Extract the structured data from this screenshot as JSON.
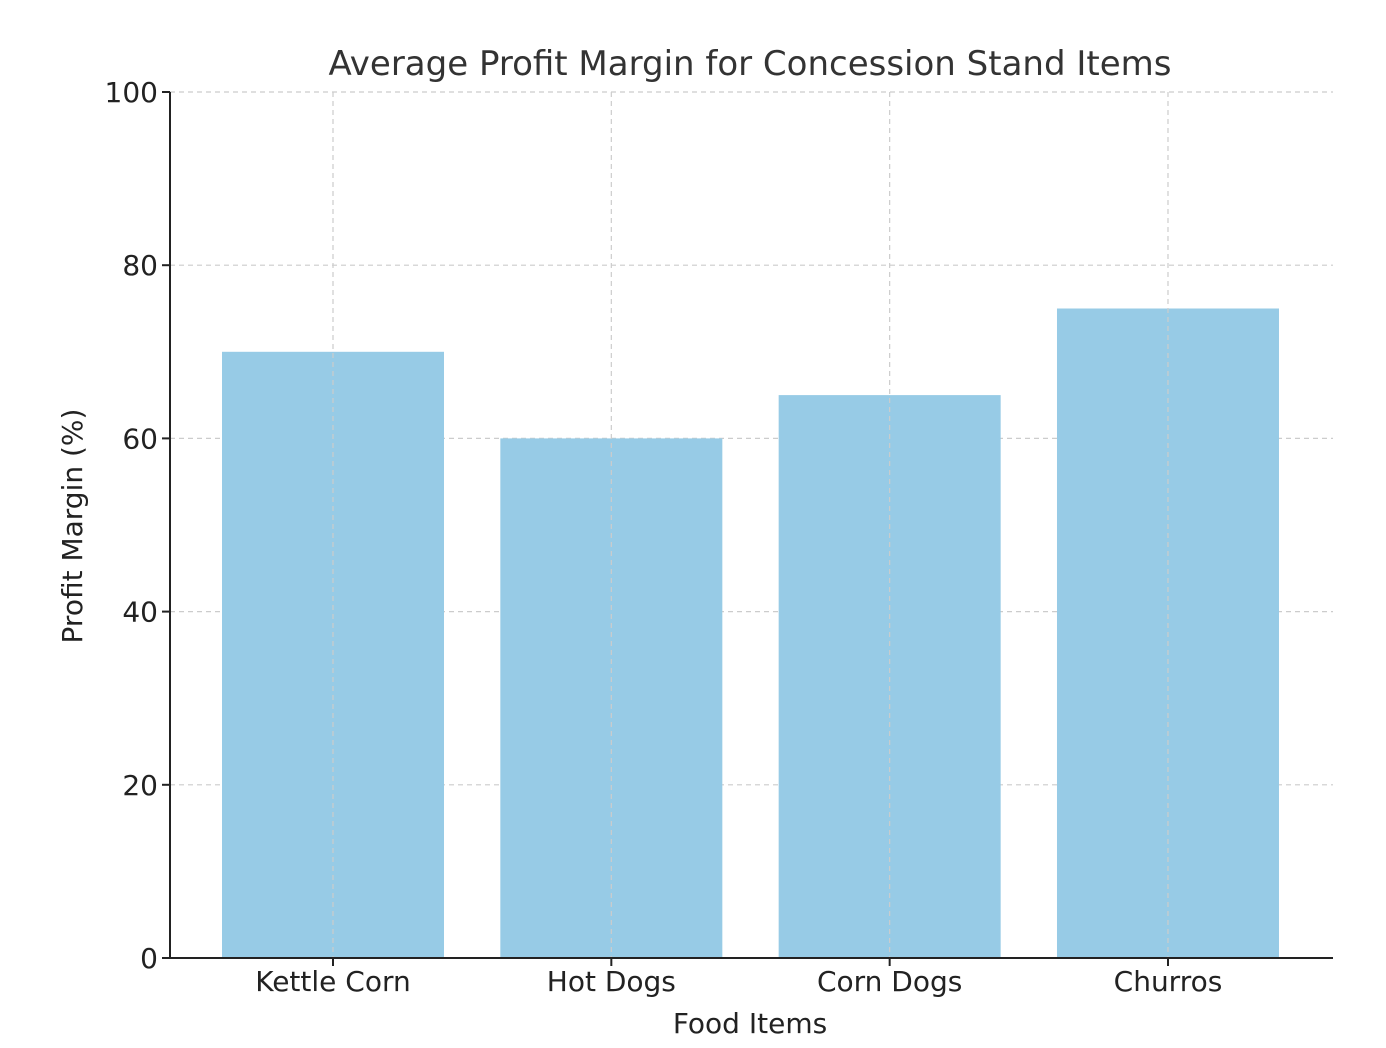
{
  "chart_data": {
    "type": "bar",
    "title": "Average Profit Margin for Concession Stand Items",
    "xlabel": "Food Items",
    "ylabel": "Profit Margin (%)",
    "categories": [
      "Kettle Corn",
      "Hot Dogs",
      "Corn Dogs",
      "Churros"
    ],
    "values": [
      70,
      60,
      65,
      75
    ],
    "ylim": [
      0,
      100
    ],
    "yticks": [
      0,
      20,
      40,
      60,
      80,
      100
    ],
    "grid": true,
    "bar_color": "#97cbe6"
  }
}
